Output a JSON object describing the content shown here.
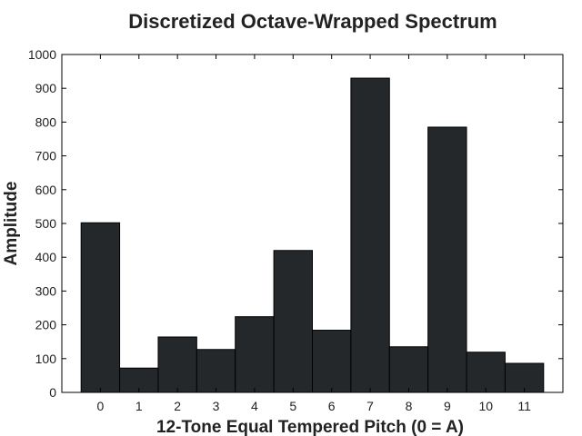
{
  "chart_data": {
    "type": "bar",
    "title": "Discretized Octave-Wrapped Spectrum",
    "xlabel": "12-Tone Equal Tempered Pitch (0 = A)",
    "ylabel": "Amplitude",
    "categories": [
      "0",
      "1",
      "2",
      "3",
      "4",
      "5",
      "6",
      "7",
      "8",
      "9",
      "10",
      "11"
    ],
    "values": [
      502,
      72,
      164,
      127,
      224,
      420,
      184,
      930,
      135,
      785,
      119,
      86
    ],
    "xlim": [
      -1,
      12
    ],
    "ylim": [
      0,
      1000
    ],
    "yticks": [
      0,
      100,
      200,
      300,
      400,
      500,
      600,
      700,
      800,
      900,
      1000
    ],
    "grid": false,
    "colors": {
      "bar_fill": "#25282b",
      "bar_edge": "#000000",
      "axis": "#000000",
      "text": "#222222"
    }
  }
}
